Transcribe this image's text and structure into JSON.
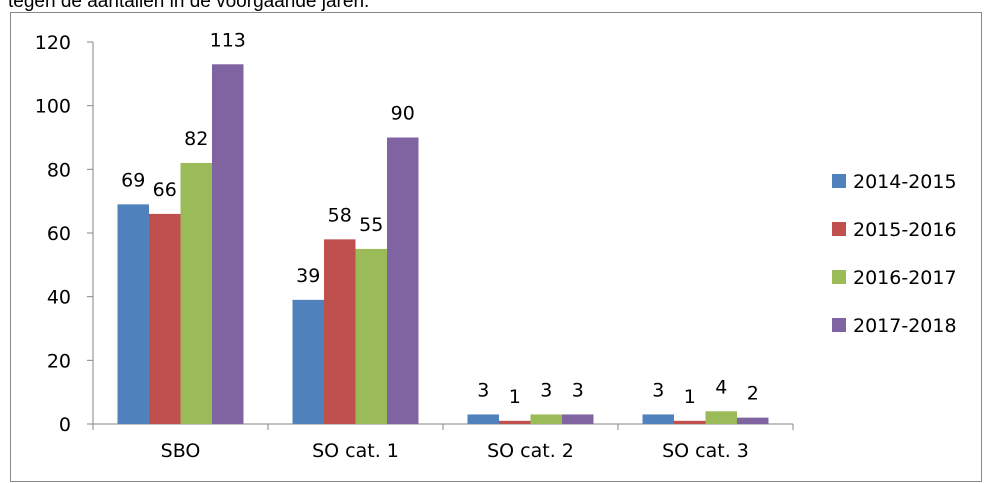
{
  "caption": "tegen de aantallen in de voorgaande jaren.",
  "chart_data": {
    "type": "bar",
    "title": "",
    "xlabel": "",
    "ylabel": "",
    "categories": [
      "SBO",
      "SO cat. 1",
      "SO cat. 2",
      "SO cat. 3"
    ],
    "series": [
      {
        "name": "2014-2015",
        "color": "#4F81BD",
        "values": [
          69,
          39,
          3,
          3
        ]
      },
      {
        "name": "2015-2016",
        "color": "#C0504D",
        "values": [
          66,
          58,
          1,
          1
        ]
      },
      {
        "name": "2016-2017",
        "color": "#9BBB59",
        "values": [
          82,
          55,
          3,
          4
        ]
      },
      {
        "name": "2017-2018",
        "color": "#8064A2",
        "values": [
          113,
          90,
          3,
          2
        ]
      }
    ],
    "ylim": [
      0,
      120
    ],
    "yticks": [
      0,
      20,
      40,
      60,
      80,
      100,
      120
    ],
    "grid": false,
    "legend": "right",
    "data_labels": true
  }
}
